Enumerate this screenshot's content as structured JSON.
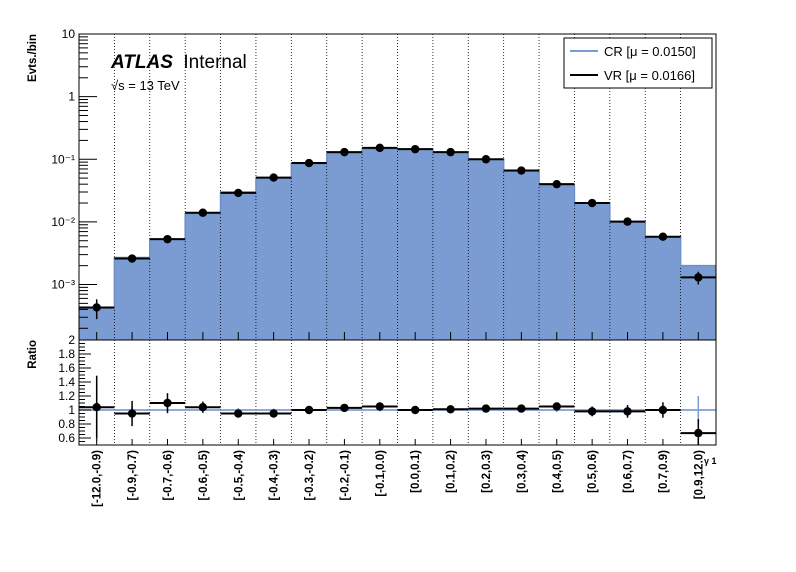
{
  "chart_data": {
    "type": "bar",
    "title": "",
    "atlas_label": "ATLAS",
    "atlas_status": "Internal",
    "energy_label": "√s = 13 TeV",
    "ylabel": "Evts./bin",
    "ratio_ylabel": "Ratio",
    "xlabel": "η_γ1",
    "xlabel_short": "γ 1",
    "yscale": "log",
    "ylim": [
      0.00013,
      10
    ],
    "y_ticks": [
      {
        "value": 10,
        "label": "10"
      },
      {
        "value": 1,
        "label": "1"
      },
      {
        "value": 0.1,
        "label": "10⁻¹"
      },
      {
        "value": 0.01,
        "label": "10⁻²"
      },
      {
        "value": 0.001,
        "label": "10⁻³"
      }
    ],
    "ratio_ylim": [
      0.5,
      2.0
    ],
    "ratio_ticks": [
      "0.6",
      "0.8",
      "1",
      "1.2",
      "1.4",
      "1.6",
      "1.8",
      "2"
    ],
    "grid": "vertical dotted",
    "legend_position": "top-right",
    "categories": [
      "[-12.0,-0.9)",
      "[-0.9,-0.7)",
      "[-0.7,-0.6)",
      "[-0.6,-0.5)",
      "[-0.5,-0.4)",
      "[-0.4,-0.3)",
      "[-0.3,-0.2)",
      "[-0.2,-0.1)",
      "[-0.1,0.0)",
      "[0.0,0.1)",
      "[0.1,0.2)",
      "[0.2,0.3)",
      "[0.3,0.4)",
      "[0.4,0.5)",
      "[0.5,0.6)",
      "[0.6,0.7)",
      "[0.7,0.9)",
      "[0.9,12.0)"
    ],
    "series": [
      {
        "name": "CR [μ = 0.0150]",
        "color": "#7b9bd3",
        "line_color": "#6d8fc7",
        "style": "filled histogram",
        "values": [
          0.00042,
          0.0027,
          0.0052,
          0.0135,
          0.03,
          0.051,
          0.084,
          0.125,
          0.145,
          0.145,
          0.128,
          0.1,
          0.065,
          0.038,
          0.02,
          0.0102,
          0.0058,
          0.002
        ]
      },
      {
        "name": "VR [μ = 0.0166]",
        "color": "#000000",
        "style": "points with error bars",
        "values": [
          0.00043,
          0.0026,
          0.0053,
          0.014,
          0.029,
          0.051,
          0.087,
          0.13,
          0.152,
          0.145,
          0.13,
          0.1,
          0.066,
          0.04,
          0.02,
          0.0101,
          0.0058,
          0.0013
        ],
        "errors_low": [
          0.00015,
          0.0003,
          0.0006,
          0.001,
          0.0018,
          0.0025,
          0.004,
          0.005,
          0.006,
          0.006,
          0.005,
          0.004,
          0.003,
          0.002,
          0.0012,
          0.0008,
          0.0006,
          0.0003
        ],
        "errors_high": [
          0.00015,
          0.0003,
          0.0006,
          0.001,
          0.0018,
          0.0025,
          0.004,
          0.005,
          0.006,
          0.006,
          0.005,
          0.004,
          0.003,
          0.002,
          0.0012,
          0.0008,
          0.0006,
          0.0003
        ]
      }
    ],
    "ratio": {
      "values": [
        1.04,
        0.95,
        1.1,
        1.04,
        0.95,
        0.95,
        1.0,
        1.03,
        1.05,
        1.0,
        1.01,
        1.02,
        1.02,
        1.05,
        0.98,
        0.98,
        1.0,
        0.67
      ],
      "errors": [
        0.45,
        0.18,
        0.14,
        0.08,
        0.05,
        0.05,
        0.04,
        0.04,
        0.04,
        0.04,
        0.04,
        0.04,
        0.05,
        0.05,
        0.07,
        0.09,
        0.11,
        0.2
      ],
      "cr_band_errors": [
        0.45,
        0.05,
        0.05,
        0.04,
        0.03,
        0.02,
        0.02,
        0.02,
        0.02,
        0.02,
        0.02,
        0.02,
        0.02,
        0.03,
        0.03,
        0.05,
        0.07,
        0.2
      ]
    }
  }
}
